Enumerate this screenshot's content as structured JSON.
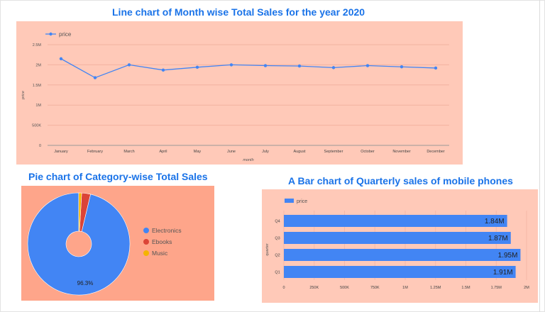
{
  "line_chart": {
    "title": "Line chart of Month wise Total Sales for the year 2020",
    "chart_data": {
      "type": "line",
      "x": [
        "January",
        "February",
        "March",
        "April",
        "May",
        "June",
        "July",
        "August",
        "September",
        "October",
        "November",
        "December"
      ],
      "series": [
        {
          "name": "price",
          "values": [
            2150000,
            1680000,
            2000000,
            1870000,
            1940000,
            2000000,
            1980000,
            1970000,
            1930000,
            1980000,
            1950000,
            1920000
          ]
        }
      ],
      "xlabel": "month",
      "ylabel": "price",
      "yticks": [
        "0",
        "500K",
        "1M",
        "1.5M",
        "2M",
        "2.5M"
      ],
      "ylim": [
        0,
        2500000
      ],
      "legend": "top-left",
      "grid": true
    },
    "colors": {
      "line": "#4285f4",
      "panel": "#ffc9b8"
    }
  },
  "pie_chart": {
    "title": "Pie chart of Category-wise Total Sales",
    "chart_data": {
      "type": "pie",
      "slices": [
        {
          "label": "Electronics",
          "value": 96.3,
          "color": "#4285f4"
        },
        {
          "label": "Ebooks",
          "value": 2.8,
          "color": "#db4437"
        },
        {
          "label": "Music",
          "value": 0.9,
          "color": "#f4b400"
        }
      ],
      "data_label": "96.3%",
      "legend": "right"
    },
    "colors": {
      "panel": "#fea58a"
    }
  },
  "bar_chart": {
    "title": "A Bar chart of Quarterly sales of mobile phones",
    "chart_data": {
      "type": "bar",
      "orientation": "horizontal",
      "categories": [
        "Q4",
        "Q3",
        "Q2",
        "Q1"
      ],
      "series": [
        {
          "name": "price",
          "values": [
            1840000,
            1870000,
            1950000,
            1910000
          ]
        }
      ],
      "data_labels": [
        "1.84M",
        "1.87M",
        "1.95M",
        "1.91M"
      ],
      "ylabel": "quarter",
      "xticks": [
        "0",
        "250K",
        "500K",
        "750K",
        "1M",
        "1.25M",
        "1.5M",
        "1.75M",
        "2M"
      ],
      "xlim": [
        0,
        2000000
      ],
      "legend": "top-left"
    },
    "colors": {
      "bar": "#4285f4",
      "panel": "#ffc9b8"
    }
  }
}
